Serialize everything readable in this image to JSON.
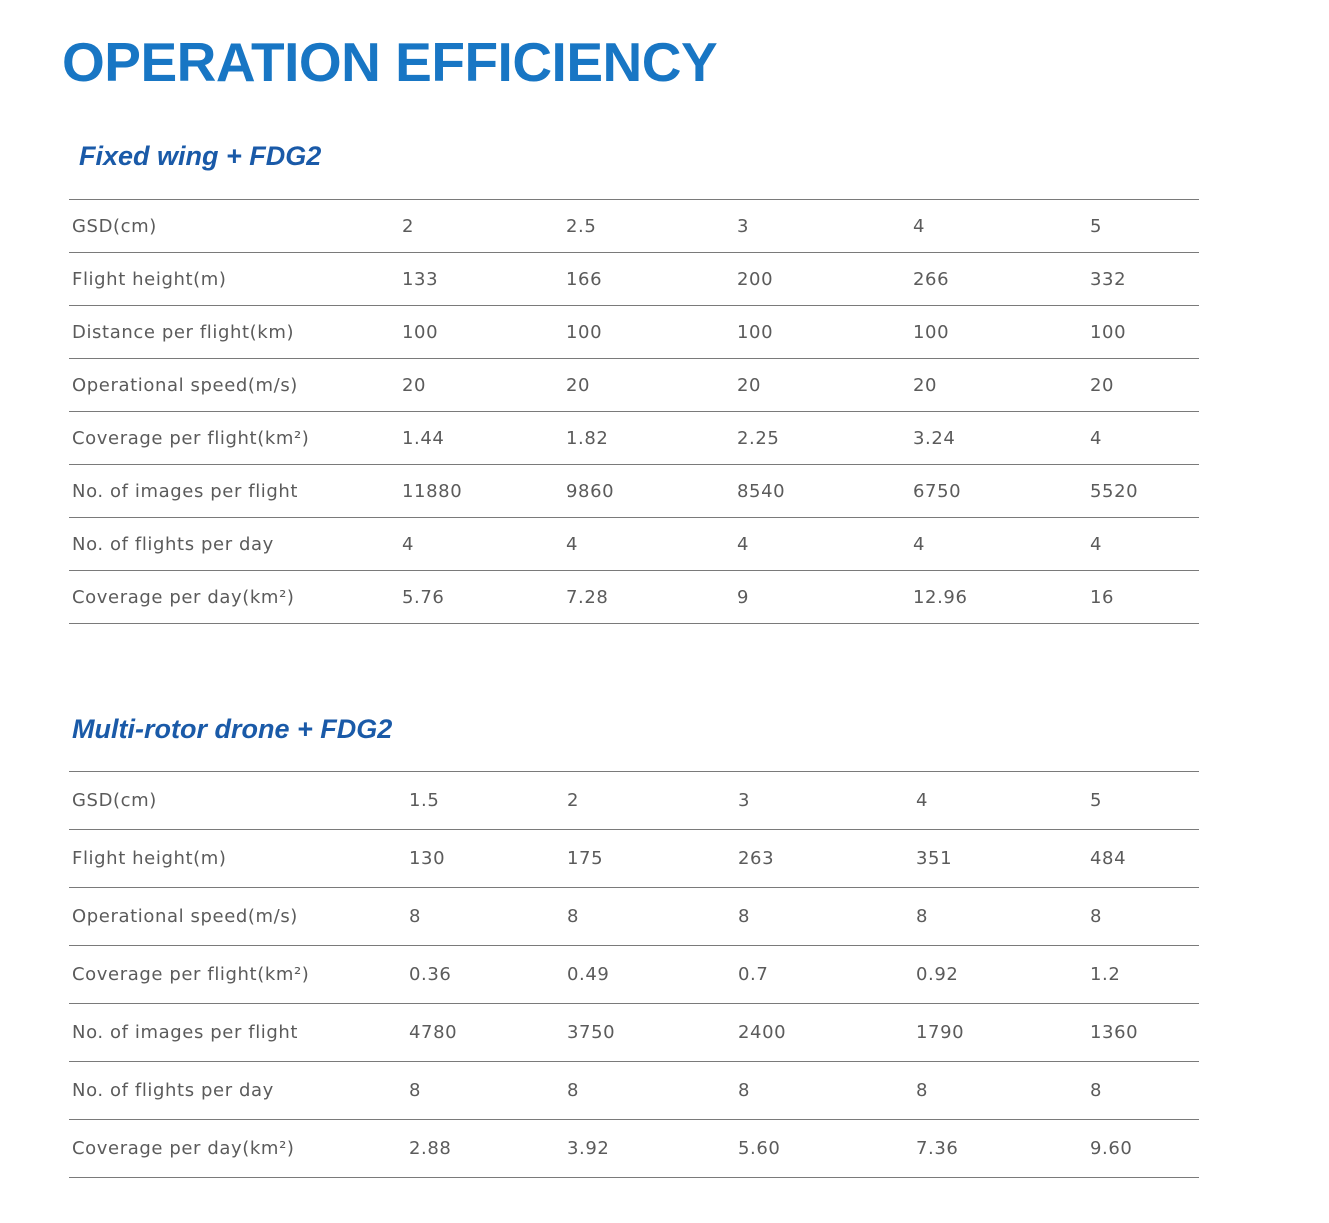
{
  "page": {
    "title": "OPERATION EFFICIENCY",
    "accent_color": "#1876c4",
    "section_color": "#1a5aa8",
    "text_color": "#5b5b5b"
  },
  "sections": [
    {
      "title": "Fixed wing + FDG2",
      "rows": [
        {
          "label": "GSD(cm)",
          "values": [
            "2",
            "2.5",
            "3",
            "4",
            "5"
          ]
        },
        {
          "label": "Flight height(m)",
          "values": [
            "133",
            "166",
            "200",
            "266",
            "332"
          ]
        },
        {
          "label": "Distance per flight(km)",
          "values": [
            "100",
            "100",
            "100",
            "100",
            "100"
          ]
        },
        {
          "label": "Operational speed(m/s)",
          "values": [
            "20",
            "20",
            "20",
            "20",
            "20"
          ]
        },
        {
          "label": "Coverage per flight(km²)",
          "values": [
            "1.44",
            "1.82",
            "2.25",
            "3.24",
            "4"
          ]
        },
        {
          "label": "No. of images per flight",
          "values": [
            "11880",
            "9860",
            "8540",
            "6750",
            "5520"
          ]
        },
        {
          "label": "No. of flights per day",
          "values": [
            "4",
            "4",
            "4",
            "4",
            "4"
          ]
        },
        {
          "label": "Coverage per day(km²)",
          "values": [
            "5.76",
            "7.28",
            "9",
            "12.96",
            "16"
          ]
        }
      ]
    },
    {
      "title": "Multi-rotor drone + FDG2",
      "rows": [
        {
          "label": "GSD(cm)",
          "values": [
            "1.5",
            "2",
            "3",
            "4",
            "5"
          ]
        },
        {
          "label": "Flight height(m)",
          "values": [
            "130",
            "175",
            "263",
            "351",
            "484"
          ]
        },
        {
          "label": "Operational speed(m/s)",
          "values": [
            "8",
            "8",
            "8",
            "8",
            "8"
          ]
        },
        {
          "label": "Coverage per flight(km²)",
          "values": [
            "0.36",
            "0.49",
            "0.7",
            "0.92",
            "1.2"
          ]
        },
        {
          "label": "No. of images per flight",
          "values": [
            "4780",
            "3750",
            "2400",
            "1790",
            "1360"
          ]
        },
        {
          "label": "No. of flights per day",
          "values": [
            "8",
            "8",
            "8",
            "8",
            "8"
          ]
        },
        {
          "label": "Coverage per day(km²)",
          "values": [
            "2.88",
            "3.92",
            "5.60",
            "7.36",
            "9.60"
          ]
        }
      ]
    }
  ]
}
